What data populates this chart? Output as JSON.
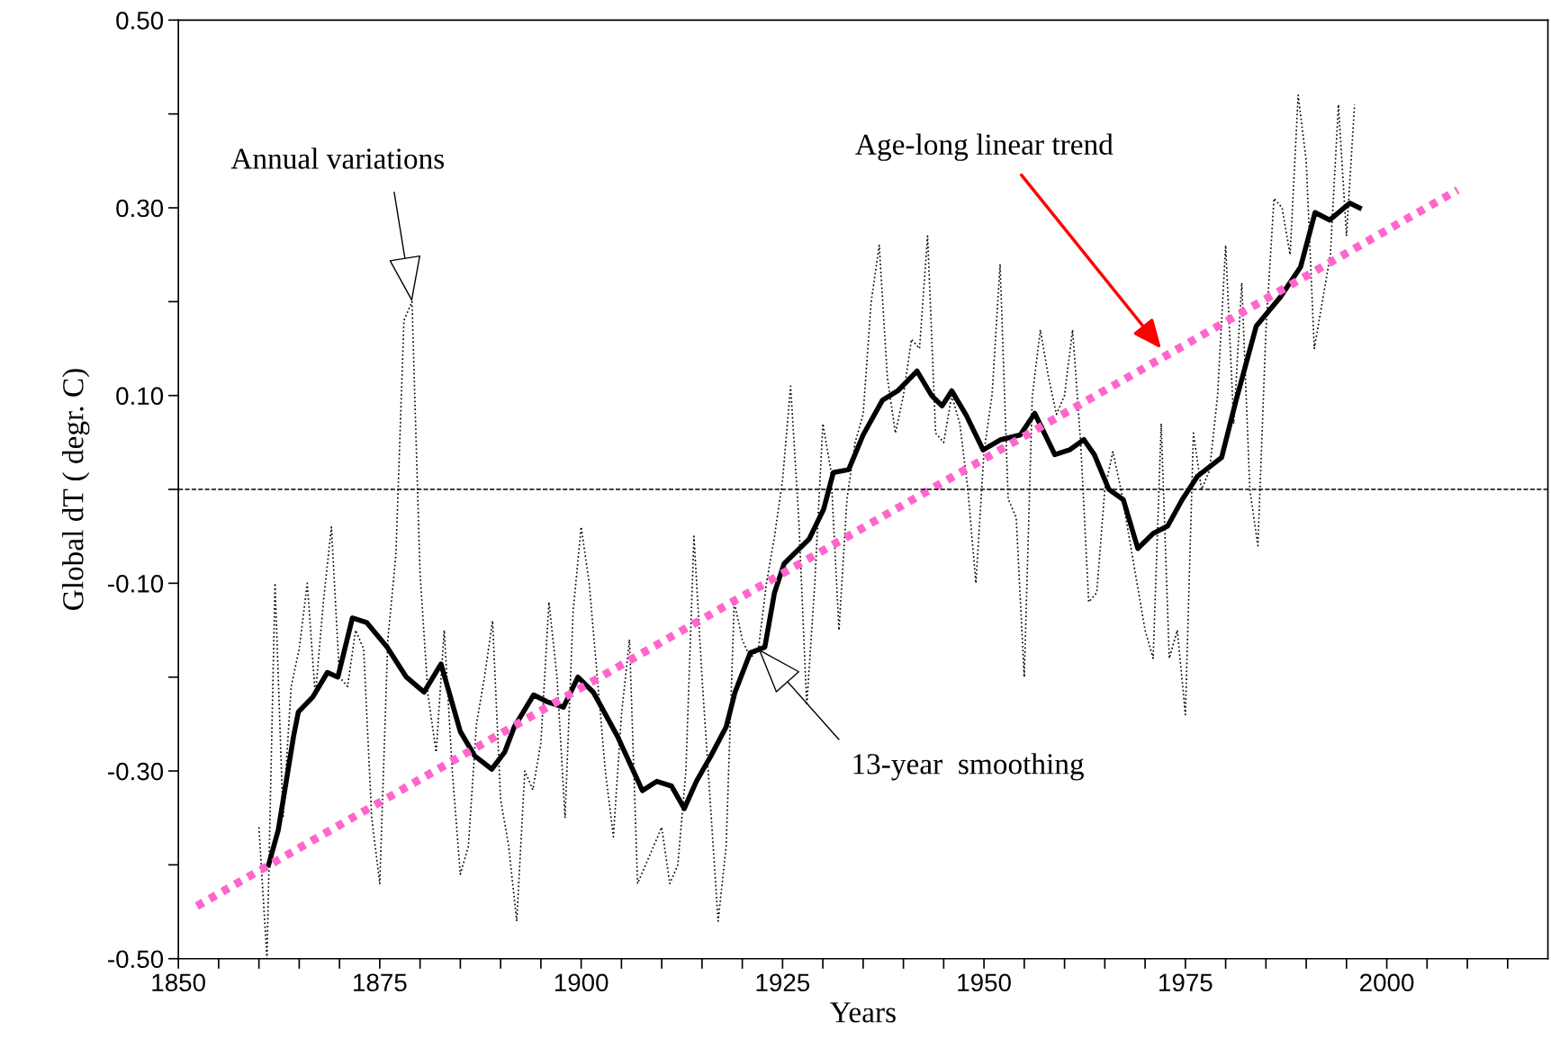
{
  "chart_data": {
    "type": "line",
    "xlabel": "Years",
    "ylabel": "Global dT ( degr. C)",
    "xlim": [
      1850,
      2020
    ],
    "ylim": [
      -0.5,
      0.5
    ],
    "xticks": [
      1850,
      {
        "value": 1855,
        "label": null
      },
      {
        "value": 1860,
        "label": null
      },
      {
        "value": 1865,
        "label": null
      },
      {
        "value": 1870,
        "label": null
      },
      1875,
      {
        "value": 1880,
        "label": null
      },
      {
        "value": 1885,
        "label": null
      },
      {
        "value": 1890,
        "label": null
      },
      {
        "value": 1895,
        "label": null
      },
      1900,
      {
        "value": 1905,
        "label": null
      },
      {
        "value": 1910,
        "label": null
      },
      {
        "value": 1915,
        "label": null
      },
      {
        "value": 1920,
        "label": null
      },
      1925,
      {
        "value": 1930,
        "label": null
      },
      {
        "value": 1935,
        "label": null
      },
      {
        "value": 1940,
        "label": null
      },
      {
        "value": 1945,
        "label": null
      },
      1950,
      {
        "value": 1955,
        "label": null
      },
      {
        "value": 1960,
        "label": null
      },
      {
        "value": 1965,
        "label": null
      },
      {
        "value": 1970,
        "label": null
      },
      1975,
      {
        "value": 1980,
        "label": null
      },
      {
        "value": 1985,
        "label": null
      },
      {
        "value": 1990,
        "label": null
      },
      {
        "value": 1995,
        "label": null
      },
      2000,
      {
        "value": 2005,
        "label": null
      },
      {
        "value": 2010,
        "label": null
      },
      {
        "value": 2015,
        "label": null
      }
    ],
    "yticks": [
      {
        "value": -0.5,
        "label": "-0.50"
      },
      {
        "value": -0.4,
        "label": null
      },
      {
        "value": -0.3,
        "label": "-0.30"
      },
      {
        "value": -0.2,
        "label": null
      },
      {
        "value": -0.1,
        "label": "-0.10"
      },
      {
        "value": 0,
        "label": null
      },
      {
        "value": 0.1,
        "label": "0.10"
      },
      {
        "value": 0.2,
        "label": null
      },
      {
        "value": 0.3,
        "label": "0.30"
      },
      {
        "value": 0.4,
        "label": null
      },
      {
        "value": 0.5,
        "label": "0.50"
      }
    ],
    "grid": false,
    "ref_lines": [
      {
        "axis": "y",
        "value": 0,
        "color": "#000000",
        "line_style": "dashed"
      }
    ],
    "series": [
      {
        "type": "line",
        "color": "#000000",
        "line_style": "dotted",
        "x": [
          1860,
          1861,
          1862,
          1863,
          1864,
          1865,
          1866,
          1867,
          1868,
          1869,
          1870,
          1871,
          1872,
          1873,
          1874,
          1875,
          1876,
          1877,
          1878,
          1879,
          1880,
          1881,
          1882,
          1883,
          1884,
          1885,
          1886,
          1887,
          1888,
          1889,
          1890,
          1891,
          1892,
          1893,
          1894,
          1895,
          1896,
          1897,
          1898,
          1899,
          1900,
          1901,
          1902,
          1903,
          1904,
          1905,
          1906,
          1907,
          1908,
          1909,
          1910,
          1911,
          1912,
          1913,
          1914,
          1915,
          1916,
          1917,
          1918,
          1919,
          1920,
          1921,
          1922,
          1923,
          1924,
          1925,
          1926,
          1927,
          1928,
          1929,
          1930,
          1931,
          1932,
          1933,
          1934,
          1935,
          1936,
          1937,
          1938,
          1939,
          1940,
          1941,
          1942,
          1943,
          1944,
          1945,
          1946,
          1947,
          1948,
          1949,
          1950,
          1951,
          1952,
          1953,
          1954,
          1955,
          1956,
          1957,
          1958,
          1959,
          1960,
          1961,
          1962,
          1963,
          1964,
          1965,
          1966,
          1967,
          1968,
          1969,
          1970,
          1971,
          1972,
          1973,
          1974,
          1975,
          1976,
          1977,
          1978,
          1979,
          1980,
          1981,
          1982,
          1983,
          1984,
          1985,
          1986,
          1987,
          1988,
          1989,
          1990,
          1991,
          1992,
          1993,
          1994,
          1995,
          1996
        ],
        "values": [
          -0.36,
          -0.5,
          -0.1,
          -0.35,
          -0.21,
          -0.17,
          -0.1,
          -0.22,
          -0.12,
          -0.04,
          -0.2,
          -0.21,
          -0.15,
          -0.17,
          -0.35,
          -0.42,
          -0.16,
          -0.07,
          0.18,
          0.2,
          -0.09,
          -0.22,
          -0.28,
          -0.15,
          -0.3,
          -0.41,
          -0.38,
          -0.25,
          -0.2,
          -0.14,
          -0.33,
          -0.38,
          -0.46,
          -0.3,
          -0.32,
          -0.27,
          -0.12,
          -0.2,
          -0.35,
          -0.13,
          -0.04,
          -0.1,
          -0.2,
          -0.3,
          -0.37,
          -0.24,
          -0.16,
          -0.42,
          -0.4,
          -0.38,
          -0.36,
          -0.42,
          -0.4,
          -0.3,
          -0.05,
          -0.2,
          -0.33,
          -0.46,
          -0.38,
          -0.12,
          -0.16,
          -0.18,
          -0.17,
          -0.1,
          -0.05,
          0.01,
          0.11,
          -0.03,
          -0.23,
          -0.1,
          0.07,
          0.02,
          -0.15,
          -0.01,
          0.05,
          0.08,
          0.2,
          0.26,
          0.12,
          0.06,
          0.1,
          0.16,
          0.15,
          0.27,
          0.06,
          0.05,
          0.1,
          0.07,
          0.0,
          -0.1,
          0.04,
          0.1,
          0.24,
          -0.01,
          -0.03,
          -0.2,
          0.1,
          0.17,
          0.12,
          0.08,
          0.1,
          0.17,
          0.05,
          -0.12,
          -0.11,
          0.0,
          0.04,
          0.0,
          -0.05,
          -0.1,
          -0.15,
          -0.18,
          0.07,
          -0.18,
          -0.15,
          -0.24,
          0.06,
          0.0,
          0.02,
          0.1,
          0.26,
          0.07,
          0.22,
          0.0,
          -0.06,
          0.17,
          0.31,
          0.3,
          0.25,
          0.42,
          0.35,
          0.15,
          0.2,
          0.25,
          0.41,
          0.27,
          0.41
        ]
      },
      {
        "type": "line",
        "color": "#000000",
        "line_style": "solid",
        "x": [
          1861.2,
          1862.4,
          1864.3,
          1864.9,
          1866.7,
          1868.5,
          1869.8,
          1871.6,
          1873.4,
          1875.9,
          1878.3,
          1880.5,
          1882.6,
          1885,
          1886.8,
          1888.9,
          1890.5,
          1891.7,
          1894.1,
          1895.7,
          1897.8,
          1899.6,
          1901.5,
          1904.5,
          1907.6,
          1909.4,
          1911.2,
          1912.8,
          1914.3,
          1916.1,
          1918,
          1919.1,
          1921,
          1922.8,
          1924,
          1925.2,
          1928.3,
          1930.1,
          1931.3,
          1933.2,
          1935,
          1937.4,
          1939.3,
          1941.7,
          1943.5,
          1944.8,
          1946,
          1947.8,
          1949.9,
          1952.1,
          1954.5,
          1956.3,
          1958.8,
          1960.6,
          1962.4,
          1963.7,
          1965.5,
          1967.3,
          1969.1,
          1971,
          1972.8,
          1974.6,
          1976.5,
          1979.5,
          1981.3,
          1983.8,
          1986.8,
          1989.3,
          1991.1,
          1992.9,
          1995.4,
          1996.6
        ],
        "values": [
          -0.4,
          -0.363,
          -0.263,
          -0.237,
          -0.221,
          -0.195,
          -0.2,
          -0.137,
          -0.142,
          -0.168,
          -0.2,
          -0.216,
          -0.186,
          -0.258,
          -0.284,
          -0.298,
          -0.28,
          -0.253,
          -0.219,
          -0.226,
          -0.232,
          -0.2,
          -0.216,
          -0.263,
          -0.321,
          -0.311,
          -0.316,
          -0.34,
          -0.311,
          -0.284,
          -0.253,
          -0.216,
          -0.174,
          -0.168,
          -0.11,
          -0.079,
          -0.053,
          -0.021,
          0.018,
          0.021,
          0.058,
          0.095,
          0.105,
          0.126,
          0.1,
          0.089,
          0.105,
          0.079,
          0.042,
          0.053,
          0.058,
          0.081,
          0.037,
          0.042,
          0.053,
          0.037,
          0.0,
          -0.011,
          -0.063,
          -0.047,
          -0.039,
          -0.011,
          0.014,
          0.034,
          0.095,
          0.174,
          0.205,
          0.237,
          0.295,
          0.287,
          0.305,
          0.3
        ]
      },
      {
        "type": "line",
        "color": "#ff66cc",
        "line_style": "dotted",
        "x": [
          1852.3,
          2008.8
        ],
        "values": [
          -0.444,
          0.319
        ]
      }
    ],
    "annotations": [
      {
        "text": "Annual variations",
        "x": 1879,
        "y": 0.2
      },
      {
        "text": "13-year  smoothing",
        "x": 1922,
        "y": -0.17
      },
      {
        "text": "Age-long linear trend",
        "x": 1972,
        "y": 0.15
      }
    ]
  }
}
